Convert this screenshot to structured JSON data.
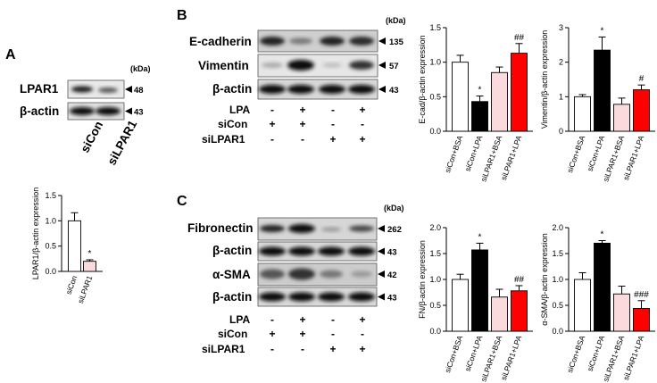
{
  "colors": {
    "siCon_BSA": "#ffffff",
    "siCon_LPA": "#000000",
    "siLPAR1_BSA": "#fadadd",
    "siLPAR1_LPA": "#ff0000",
    "siCon": "#ffffff",
    "siLPAR1": "#fadadd"
  },
  "panels": {
    "A": {
      "label": "A",
      "kda": "(kDa)",
      "blots": [
        {
          "name": "LPAR1",
          "mw": "48"
        },
        {
          "name": "β-actin",
          "mw": "43"
        }
      ],
      "lanes": [
        "siCon",
        "siLPAR1"
      ]
    },
    "B": {
      "label": "B",
      "kda": "(kDa)",
      "blots": [
        {
          "name": "E-cadherin",
          "mw": "135"
        },
        {
          "name": "Vimentin",
          "mw": "57"
        },
        {
          "name": "β-actin",
          "mw": "43"
        }
      ],
      "treatment_rows": [
        {
          "label": "LPA",
          "signs": [
            "-",
            "+",
            "-",
            "+"
          ]
        },
        {
          "label": "siCon",
          "signs": [
            "+",
            "+",
            "-",
            "-"
          ]
        },
        {
          "label": "siLPAR1",
          "signs": [
            "-",
            "-",
            "+",
            "+"
          ]
        }
      ]
    },
    "C": {
      "label": "C",
      "kda": "(kDa)",
      "blots": [
        {
          "name": "Fibronectin",
          "mw": "262"
        },
        {
          "name": "β-actin",
          "mw": "43"
        },
        {
          "name": "α-SMA",
          "mw": "42"
        },
        {
          "name": "β-actin",
          "mw": "43"
        }
      ],
      "treatment_rows": [
        {
          "label": "LPA",
          "signs": [
            "-",
            "+",
            "-",
            "+"
          ]
        },
        {
          "label": "siCon",
          "signs": [
            "+",
            "+",
            "-",
            "-"
          ]
        },
        {
          "label": "siLPAR1",
          "signs": [
            "-",
            "-",
            "+",
            "+"
          ]
        }
      ]
    }
  },
  "chart_data": [
    {
      "type": "bar",
      "panel": "A",
      "ylabel": "LPAR1/β-actin expression",
      "ylim": [
        0,
        1.5
      ],
      "yticks": [
        "0.0",
        "0.5",
        "1.0",
        "1.5"
      ],
      "categories": [
        "siCon",
        "siLPAR1"
      ],
      "values": [
        1.0,
        0.2
      ],
      "errors": [
        0.16,
        0.03
      ],
      "significance": [
        "",
        "*"
      ]
    },
    {
      "type": "bar",
      "panel": "B",
      "ylabel": "E-cad/β-actin expression",
      "ylim": [
        0,
        1.5
      ],
      "yticks": [
        "0.0",
        "0.5",
        "1.0",
        "1.5"
      ],
      "categories": [
        "siCon+BSA",
        "siCon+LPA",
        "siLPAR1+BSA",
        "siLPAR1+LPA"
      ],
      "values": [
        1.0,
        0.43,
        0.85,
        1.13
      ],
      "errors": [
        0.1,
        0.08,
        0.08,
        0.14
      ],
      "significance": [
        "",
        "*",
        "",
        "##"
      ]
    },
    {
      "type": "bar",
      "panel": "B",
      "ylabel": "Vimentin/β-actin expression",
      "ylim": [
        0,
        3
      ],
      "yticks": [
        "0",
        "1",
        "2",
        "3"
      ],
      "categories": [
        "siCon+BSA",
        "siCon+LPA",
        "siLPAR1+BSA",
        "siLPAR1+LPA"
      ],
      "values": [
        1.0,
        2.35,
        0.78,
        1.2
      ],
      "errors": [
        0.06,
        0.38,
        0.18,
        0.14
      ],
      "significance": [
        "",
        "*",
        "",
        "#"
      ]
    },
    {
      "type": "bar",
      "panel": "C",
      "ylabel": "FN/β-actin expression",
      "ylim": [
        0,
        2.0
      ],
      "yticks": [
        "0.0",
        "0.5",
        "1.0",
        "1.5",
        "2.0"
      ],
      "categories": [
        "siCon+BSA",
        "siCon+LPA",
        "siLPAR1+BSA",
        "siLPAR1+LPA"
      ],
      "values": [
        1.0,
        1.57,
        0.66,
        0.78
      ],
      "errors": [
        0.1,
        0.13,
        0.15,
        0.1
      ],
      "significance": [
        "",
        "*",
        "",
        "##"
      ]
    },
    {
      "type": "bar",
      "panel": "C",
      "ylabel": "α-SMA/β-actin expression",
      "ylim": [
        0,
        2.0
      ],
      "yticks": [
        "0.0",
        "0.5",
        "1.0",
        "1.5",
        "2.0"
      ],
      "categories": [
        "siCon+BSA",
        "siCon+LPA",
        "siLPAR1+BSA",
        "siLPAR1+LPA"
      ],
      "values": [
        1.0,
        1.7,
        0.72,
        0.44
      ],
      "errors": [
        0.13,
        0.05,
        0.15,
        0.15
      ],
      "significance": [
        "",
        "*",
        "",
        "###"
      ]
    }
  ]
}
